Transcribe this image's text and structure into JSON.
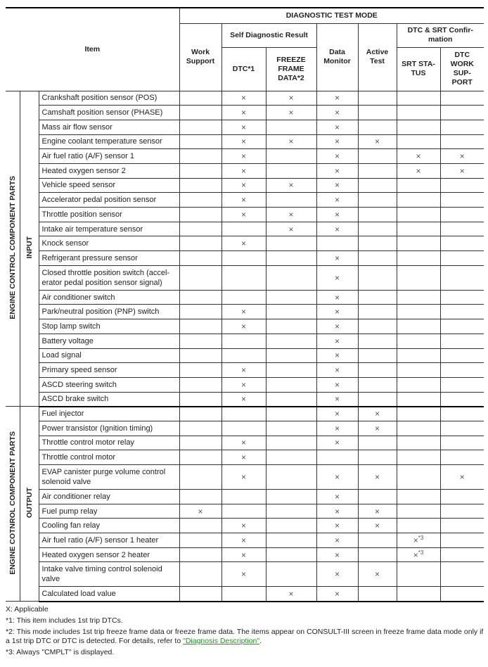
{
  "header": {
    "item": "Item",
    "diagnostic_test_mode": "DIAGNOSTIC TEST MODE",
    "work_support": "Work Support",
    "self_diagnostic_result": "Self Diagnostic Result",
    "dtc": "DTC*1",
    "freeze_frame": "FREEZE FRAME DATA*2",
    "data_monitor": "Data Monitor",
    "active_test": "Active Test",
    "dtc_srt_confirmation": "DTC & SRT Confir-mation",
    "srt_status": "SRT STA-TUS",
    "dtc_work_support": "DTC WORK SUP-PORT"
  },
  "mark": "×",
  "groups": [
    {
      "label": "ENGINE CONTROL COMPONENT PARTS",
      "sublabel": "INPUT",
      "rows": [
        {
          "item": "Crankshaft position sensor (POS)",
          "marks": [
            "",
            "×",
            "×",
            "×",
            "",
            "",
            ""
          ]
        },
        {
          "item": "Camshaft position sensor (PHASE)",
          "marks": [
            "",
            "×",
            "×",
            "×",
            "",
            "",
            ""
          ]
        },
        {
          "item": "Mass air flow sensor",
          "marks": [
            "",
            "×",
            "",
            "×",
            "",
            "",
            ""
          ]
        },
        {
          "item": "Engine coolant temperature sensor",
          "marks": [
            "",
            "×",
            "×",
            "×",
            "×",
            "",
            ""
          ]
        },
        {
          "item": "Air fuel ratio (A/F) sensor 1",
          "marks": [
            "",
            "×",
            "",
            "×",
            "",
            "×",
            "×"
          ]
        },
        {
          "item": "Heated oxygen sensor 2",
          "marks": [
            "",
            "×",
            "",
            "×",
            "",
            "×",
            "×"
          ]
        },
        {
          "item": "Vehicle speed sensor",
          "marks": [
            "",
            "×",
            "×",
            "×",
            "",
            "",
            ""
          ]
        },
        {
          "item": "Accelerator pedal position sensor",
          "marks": [
            "",
            "×",
            "",
            "×",
            "",
            "",
            ""
          ]
        },
        {
          "item": "Throttle position sensor",
          "marks": [
            "",
            "×",
            "×",
            "×",
            "",
            "",
            ""
          ]
        },
        {
          "item": "Intake air temperature sensor",
          "marks": [
            "",
            "",
            "×",
            "×",
            "",
            "",
            ""
          ]
        },
        {
          "item": "Knock sensor",
          "marks": [
            "",
            "×",
            "",
            "",
            "",
            "",
            ""
          ]
        },
        {
          "item": "Refrigerant pressure sensor",
          "marks": [
            "",
            "",
            "",
            "×",
            "",
            "",
            ""
          ]
        },
        {
          "item": "Closed throttle position switch (accel-erator pedal position sensor signal)",
          "marks": [
            "",
            "",
            "",
            "×",
            "",
            "",
            ""
          ],
          "tall": true
        },
        {
          "item": "Air conditioner switch",
          "marks": [
            "",
            "",
            "",
            "×",
            "",
            "",
            ""
          ]
        },
        {
          "item": "Park/neutral position (PNP) switch",
          "marks": [
            "",
            "×",
            "",
            "×",
            "",
            "",
            ""
          ]
        },
        {
          "item": "Stop lamp switch",
          "marks": [
            "",
            "×",
            "",
            "×",
            "",
            "",
            ""
          ]
        },
        {
          "item": "Battery voltage",
          "marks": [
            "",
            "",
            "",
            "×",
            "",
            "",
            ""
          ]
        },
        {
          "item": "Load signal",
          "marks": [
            "",
            "",
            "",
            "×",
            "",
            "",
            ""
          ]
        },
        {
          "item": "Primary speed sensor",
          "marks": [
            "",
            "×",
            "",
            "×",
            "",
            "",
            ""
          ]
        },
        {
          "item": "ASCD steering switch",
          "marks": [
            "",
            "×",
            "",
            "×",
            "",
            "",
            ""
          ]
        },
        {
          "item": "ASCD brake switch",
          "marks": [
            "",
            "×",
            "",
            "×",
            "",
            "",
            ""
          ]
        }
      ]
    },
    {
      "label": "ENGINE COTNROL COMPONENT PARTS",
      "sublabel": "OUTPUT",
      "rows": [
        {
          "item": "Fuel injector",
          "marks": [
            "",
            "",
            "",
            "×",
            "×",
            "",
            ""
          ]
        },
        {
          "item": "Power transistor (Ignition timing)",
          "marks": [
            "",
            "",
            "",
            "×",
            "×",
            "",
            ""
          ]
        },
        {
          "item": "Throttle control motor relay",
          "marks": [
            "",
            "×",
            "",
            "×",
            "",
            "",
            ""
          ]
        },
        {
          "item": "Throttle control motor",
          "marks": [
            "",
            "×",
            "",
            "",
            "",
            "",
            ""
          ]
        },
        {
          "item": "EVAP canister purge volume control solenoid valve",
          "marks": [
            "",
            "×",
            "",
            "×",
            "×",
            "",
            "×"
          ],
          "tall": true
        },
        {
          "item": "Air conditioner relay",
          "marks": [
            "",
            "",
            "",
            "×",
            "",
            "",
            ""
          ]
        },
        {
          "item": "Fuel pump relay",
          "marks": [
            "×",
            "",
            "",
            "×",
            "×",
            "",
            ""
          ]
        },
        {
          "item": "Cooling fan relay",
          "marks": [
            "",
            "×",
            "",
            "×",
            "×",
            "",
            ""
          ]
        },
        {
          "item": "Air fuel ratio (A/F) sensor 1 heater",
          "marks": [
            "",
            "×",
            "",
            "×",
            "",
            "×*3",
            ""
          ]
        },
        {
          "item": "Heated oxygen sensor 2 heater",
          "marks": [
            "",
            "×",
            "",
            "×",
            "",
            "×*3",
            ""
          ]
        },
        {
          "item": "Intake valve timing control solenoid valve",
          "marks": [
            "",
            "×",
            "",
            "×",
            "×",
            "",
            ""
          ],
          "tall": true
        },
        {
          "item": "Calculated load value",
          "marks": [
            "",
            "",
            "×",
            "×",
            "",
            "",
            ""
          ]
        }
      ]
    }
  ],
  "notes": {
    "applicable": "X: Applicable",
    "note1": "*1: This item includes 1st trip DTCs.",
    "note2": "*2: This mode includes 1st trip freeze frame data or freeze frame data. The items appear on CONSULT-III screen in freeze frame data mode only if a 1st trip DTC or DTC is detected. For details, refer to ",
    "note2_link": "\"Diagnosis Description\"",
    "note2_end": ".",
    "note3": "*3: Always \"CMPLT\" is displayed."
  }
}
